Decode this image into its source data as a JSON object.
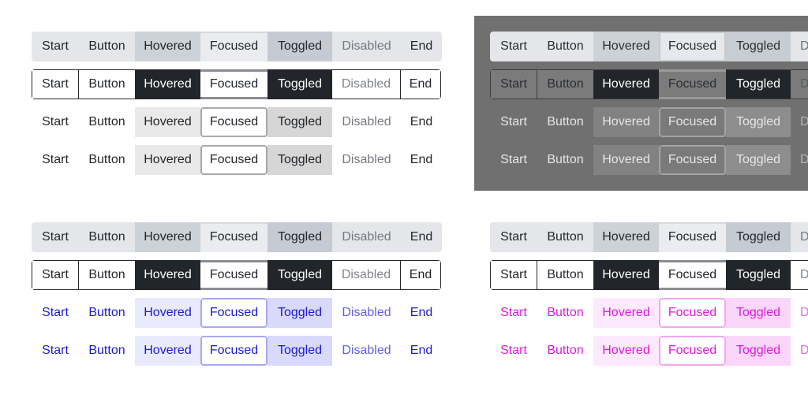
{
  "labels": {
    "start": "Start",
    "button": "Button",
    "hovered": "Hovered",
    "focused": "Focused",
    "toggled": "Toggled",
    "disabled": "Disabled",
    "disabled_clipped": "D",
    "end": "End"
  },
  "colors": {
    "dark_panel_background": "#707070",
    "blue_accent": "#1a1ad4",
    "magenta_accent": "#dd19dd",
    "outline_hover_fill": "#222529"
  }
}
